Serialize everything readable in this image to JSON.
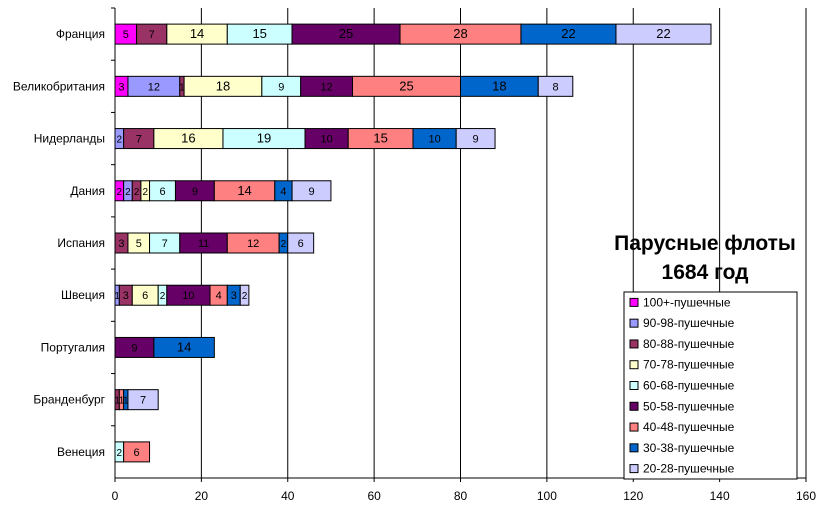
{
  "chart_data": {
    "type": "bar",
    "orientation": "horizontal",
    "stacked": true,
    "title": [
      "Парусные флоты",
      "1684 год"
    ],
    "xlabel": "",
    "ylabel": "",
    "xlim": [
      0,
      160
    ],
    "x_ticks": [
      0,
      20,
      40,
      60,
      80,
      100,
      120,
      140,
      160
    ],
    "grid": "vertical",
    "legend_position": "right",
    "categories": [
      "Франция",
      "Великобритания",
      "Нидерланды",
      "Дания",
      "Испания",
      "Швеция",
      "Португалия",
      "Бранденбург",
      "Венеция"
    ],
    "series": [
      {
        "name": "100+-пушечные",
        "color": "#ff00ff",
        "text_color": "#ffffff",
        "values": [
          5,
          3,
          0,
          2,
          0,
          0,
          0,
          0,
          0
        ],
        "labels": [
          "5",
          "3",
          "",
          "2",
          "",
          "",
          "",
          "",
          ""
        ]
      },
      {
        "name": "90-98-пушечные",
        "color": "#9999ff",
        "text_color": "#000000",
        "values": [
          0,
          12,
          2,
          2,
          0,
          1,
          0,
          0,
          0
        ],
        "labels": [
          "",
          "12",
          "2",
          "2",
          "",
          "1",
          "",
          "",
          ""
        ]
      },
      {
        "name": "80-88-пушечные",
        "color": "#993366",
        "text_color": "#ffffff",
        "values": [
          7,
          1,
          7,
          2,
          3,
          3,
          0,
          1,
          0
        ],
        "labels": [
          "7",
          "1",
          "7",
          "2",
          "3",
          "3",
          "",
          "1",
          ""
        ]
      },
      {
        "name": "70-78-пушечные",
        "color": "#ffffcc",
        "text_color": "#000000",
        "values": [
          14,
          18,
          16,
          2,
          5,
          6,
          0,
          0,
          0
        ],
        "labels": [
          "14",
          "18",
          "16",
          "2",
          "5",
          "6",
          "",
          "",
          ""
        ]
      },
      {
        "name": "60-68-пушечные",
        "color": "#ccffff",
        "text_color": "#000000",
        "values": [
          15,
          9,
          19,
          6,
          7,
          2,
          0,
          0,
          2
        ],
        "labels": [
          "15",
          "9",
          "19",
          "6",
          "7",
          "2",
          "",
          "",
          "2"
        ]
      },
      {
        "name": "50-58-пушечные",
        "color": "#660066",
        "text_color": "#ffffff",
        "values": [
          25,
          12,
          10,
          9,
          11,
          10,
          9,
          0,
          0
        ],
        "labels": [
          "25",
          "12",
          "10",
          "9",
          "11",
          "10",
          "9",
          "",
          ""
        ]
      },
      {
        "name": "40-48-пушечные",
        "color": "#ff8080",
        "text_color": "#000000",
        "values": [
          28,
          25,
          15,
          14,
          12,
          4,
          0,
          1,
          6
        ],
        "labels": [
          "28",
          "25",
          "15",
          "14",
          "12",
          "4",
          "",
          "1",
          "6"
        ]
      },
      {
        "name": "30-38-пушечные",
        "color": "#0066cc",
        "text_color": "#000000",
        "values": [
          22,
          18,
          10,
          4,
          2,
          3,
          14,
          1,
          0
        ],
        "labels": [
          "22",
          "18",
          "10",
          "4",
          "2",
          "3",
          "14",
          "1",
          ""
        ]
      },
      {
        "name": "20-28-пушечные",
        "color": "#ccccff",
        "text_color": "#000000",
        "values": [
          22,
          8,
          9,
          9,
          6,
          2,
          0,
          7,
          0
        ],
        "labels": [
          "22",
          "8",
          "9",
          "9",
          "6",
          "2",
          "",
          "7",
          ""
        ]
      }
    ]
  }
}
